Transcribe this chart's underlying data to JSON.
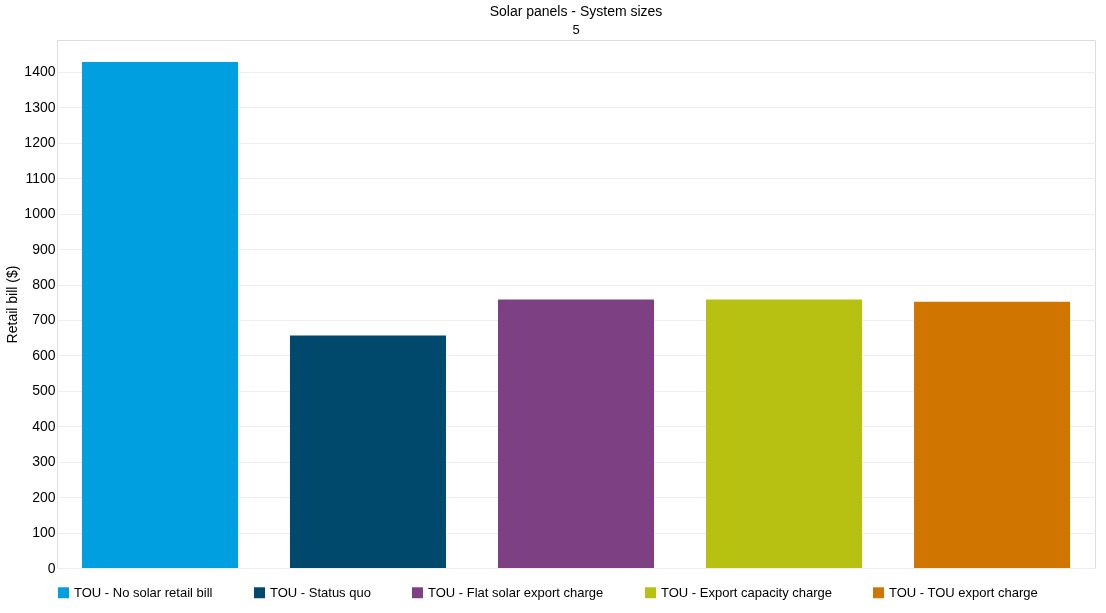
{
  "chart_data": {
    "type": "bar",
    "title": "Solar panels - System sizes",
    "ylabel": "Retail bill ($)",
    "categories": [
      "5"
    ],
    "series": [
      {
        "name": "TOU - No solar retail bill",
        "color": "#009fdf",
        "values": [
          1428
        ]
      },
      {
        "name": "TOU - Status quo",
        "color": "#00496c",
        "values": [
          656
        ]
      },
      {
        "name": "TOU - Flat solar export charge",
        "color": "#7d4083",
        "values": [
          758
        ]
      },
      {
        "name": "TOU - Export capacity charge",
        "color": "#b7c112",
        "values": [
          758
        ]
      },
      {
        "name": "TOU - TOU export charge",
        "color": "#cf7500",
        "values": [
          751
        ]
      }
    ],
    "ylim": [
      0,
      1490
    ],
    "yticks": [
      0,
      100,
      200,
      300,
      400,
      500,
      600,
      700,
      800,
      900,
      1000,
      1100,
      1200,
      1300,
      1400
    ],
    "grid": "y",
    "legend": "bottom"
  }
}
